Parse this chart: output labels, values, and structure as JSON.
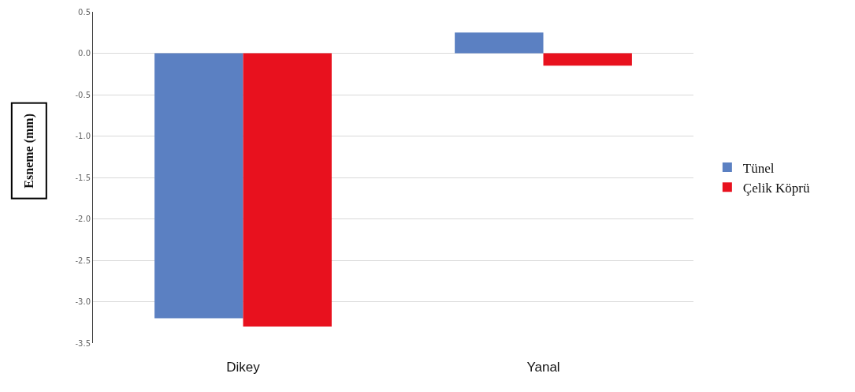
{
  "chart_data": {
    "type": "bar",
    "ylabel": "Esneme (mm)",
    "categories": [
      "Dikey",
      "Yanal"
    ],
    "series": [
      {
        "name": "Tünel",
        "color": "#5b80c2",
        "values": [
          -3.2,
          0.25
        ]
      },
      {
        "name": "Çelik Köprü",
        "color": "#e8111e",
        "values": [
          -3.3,
          -0.15
        ]
      }
    ],
    "ylim": [
      -3.5,
      0.5
    ],
    "yticks": [
      0.5,
      {
        "value": 0,
        "label": "0.0"
      },
      -0.5,
      {
        "value": -1,
        "label": "-1.0"
      },
      -1.5,
      {
        "value": -2,
        "label": "-2.0"
      },
      -2.5,
      {
        "value": -3,
        "label": "-3.0"
      },
      -3.5
    ],
    "grid": "y",
    "legend": "right"
  }
}
